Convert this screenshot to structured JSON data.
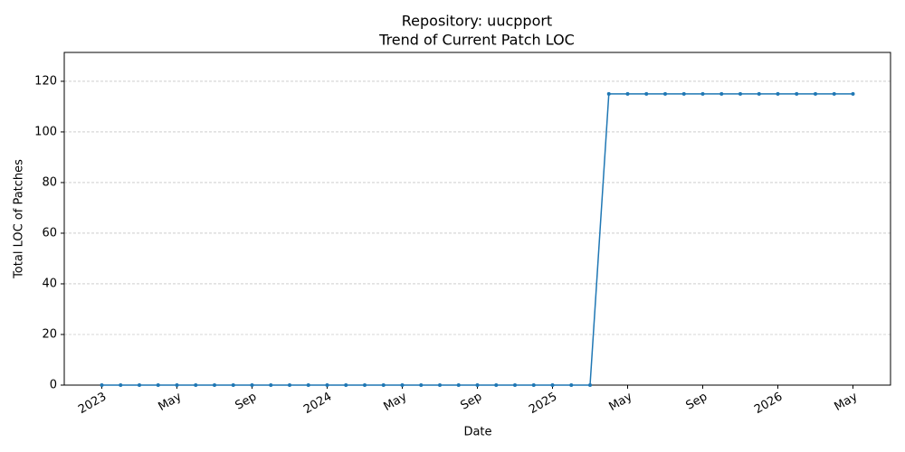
{
  "chart_data": {
    "type": "line",
    "title": "Repository: uucpport",
    "subtitle": "Trend of Current Patch LOC",
    "x_label": "Date",
    "y_label": "Total LOC of Patches",
    "x": [
      "2023-01",
      "2023-02",
      "2023-03",
      "2023-04",
      "2023-05",
      "2023-06",
      "2023-07",
      "2023-08",
      "2023-09",
      "2023-10",
      "2023-11",
      "2023-12",
      "2024-01",
      "2024-02",
      "2024-03",
      "2024-04",
      "2024-05",
      "2024-06",
      "2024-07",
      "2024-08",
      "2024-09",
      "2024-10",
      "2024-11",
      "2024-12",
      "2025-01",
      "2025-02",
      "2025-03",
      "2025-04",
      "2025-05",
      "2025-06",
      "2025-07",
      "2025-08",
      "2025-09",
      "2025-10",
      "2025-11",
      "2025-12",
      "2026-01",
      "2026-02",
      "2026-03",
      "2026-04",
      "2026-05"
    ],
    "values": [
      0,
      0,
      0,
      0,
      0,
      0,
      0,
      0,
      0,
      0,
      0,
      0,
      0,
      0,
      0,
      0,
      0,
      0,
      0,
      0,
      0,
      0,
      0,
      0,
      0,
      0,
      0,
      115,
      115,
      115,
      115,
      115,
      115,
      115,
      115,
      115,
      115,
      115,
      115,
      115,
      115
    ],
    "color": "#1f77b4",
    "xlim": [
      "2022-11",
      "2026-07"
    ],
    "xticks": [
      {
        "value": "2023-01",
        "label": "2023"
      },
      {
        "value": "2023-05",
        "label": "May"
      },
      {
        "value": "2023-09",
        "label": "Sep"
      },
      {
        "value": "2024-01",
        "label": "2024"
      },
      {
        "value": "2024-05",
        "label": "May"
      },
      {
        "value": "2024-09",
        "label": "Sep"
      },
      {
        "value": "2025-01",
        "label": "2025"
      },
      {
        "value": "2025-05",
        "label": "May"
      },
      {
        "value": "2025-09",
        "label": "Sep"
      },
      {
        "value": "2026-01",
        "label": "2026"
      },
      {
        "value": "2026-05",
        "label": "May"
      }
    ],
    "ylim": [
      0,
      131.4
    ],
    "yticks": [
      0,
      20,
      40,
      60,
      80,
      100,
      120
    ],
    "grid": "y"
  }
}
